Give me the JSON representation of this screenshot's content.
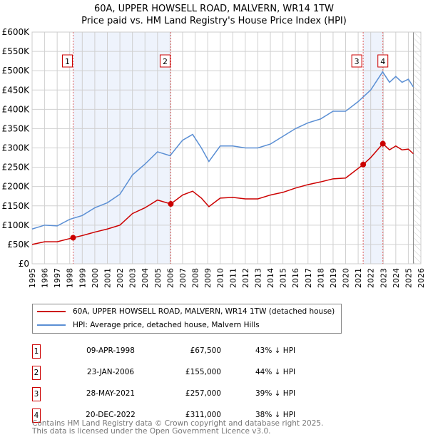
{
  "chart_data": {
    "type": "line",
    "title": "60A, UPPER HOWSELL ROAD, MALVERN, WR14 1TW",
    "subtitle": "Price paid vs. HM Land Registry's House Price Index (HPI)",
    "xlim": [
      1995,
      2026
    ],
    "ylim": [
      0,
      600000
    ],
    "xticks": [
      "1995",
      "1996",
      "1997",
      "1998",
      "1999",
      "2000",
      "2001",
      "2002",
      "2003",
      "2004",
      "2005",
      "2006",
      "2007",
      "2008",
      "2009",
      "2010",
      "2011",
      "2012",
      "2013",
      "2014",
      "2015",
      "2016",
      "2017",
      "2018",
      "2019",
      "2020",
      "2021",
      "2022",
      "2023",
      "2024",
      "2025",
      "2026"
    ],
    "yticks": [
      "£0",
      "£50K",
      "£100K",
      "£150K",
      "£200K",
      "£250K",
      "£300K",
      "£350K",
      "£400K",
      "£450K",
      "£500K",
      "£550K",
      "£600K"
    ],
    "grid": true,
    "series": [
      {
        "name": "60A, UPPER HOWSELL ROAD, MALVERN, WR14 1TW (detached house)",
        "color": "#cc0000",
        "x": [
          1995,
          1996,
          1997,
          1998.27,
          1999,
          2000,
          2001,
          2002,
          2003,
          2004,
          2005,
          2006.06,
          2007,
          2007.8,
          2008.5,
          2009.1,
          2010,
          2011,
          2012,
          2013,
          2014,
          2015,
          2016,
          2017,
          2018,
          2019,
          2020,
          2021.4,
          2022,
          2022.97,
          2023.5,
          2024,
          2024.5,
          2025,
          2025.4
        ],
        "y": [
          50000,
          57000,
          57000,
          67500,
          73000,
          82000,
          90000,
          100000,
          130000,
          145000,
          165000,
          155000,
          178000,
          188000,
          170000,
          148000,
          170000,
          172000,
          168000,
          168000,
          178000,
          185000,
          196000,
          205000,
          212000,
          220000,
          222000,
          257000,
          275000,
          311000,
          295000,
          305000,
          295000,
          297000,
          285000
        ]
      },
      {
        "name": "HPI: Average price, detached house, Malvern Hills",
        "color": "#5b8fd4",
        "x": [
          1995,
          1996,
          1997,
          1998,
          1999,
          2000,
          2001,
          2002,
          2003,
          2004,
          2005,
          2006,
          2007,
          2007.8,
          2008.5,
          2009.1,
          2010,
          2011,
          2012,
          2013,
          2014,
          2015,
          2016,
          2017,
          2018,
          2019,
          2020,
          2021,
          2022,
          2022.95,
          2023.5,
          2024,
          2024.5,
          2025,
          2025.4
        ],
        "y": [
          90000,
          100000,
          98000,
          115000,
          125000,
          145000,
          158000,
          180000,
          230000,
          258000,
          290000,
          280000,
          320000,
          335000,
          300000,
          265000,
          305000,
          305000,
          300000,
          300000,
          310000,
          330000,
          350000,
          365000,
          375000,
          395000,
          395000,
          420000,
          450000,
          497000,
          470000,
          485000,
          470000,
          478000,
          458000
        ]
      }
    ],
    "sales": [
      {
        "n": "1",
        "x": 1998.27,
        "y": 67500,
        "date": "09-APR-1998",
        "price": "£67,500",
        "hpi": "43% ↓ HPI"
      },
      {
        "n": "2",
        "x": 2006.06,
        "y": 155000,
        "date": "23-JAN-2006",
        "price": "£155,000",
        "hpi": "44% ↓ HPI"
      },
      {
        "n": "3",
        "x": 2021.4,
        "y": 257000,
        "date": "28-MAY-2021",
        "price": "£257,000",
        "hpi": "39% ↓ HPI"
      },
      {
        "n": "4",
        "x": 2022.97,
        "y": 311000,
        "date": "20-DEC-2022",
        "price": "£311,000",
        "hpi": "38% ↓ HPI"
      }
    ],
    "shaded": [
      [
        1998.27,
        2006.06
      ],
      [
        2021.4,
        2022.97
      ]
    ],
    "forecast_start": 2025.4
  },
  "footer": [
    "Contains HM Land Registry data © Crown copyright and database right 2025.",
    "This data is licensed under the Open Government Licence v3.0."
  ]
}
